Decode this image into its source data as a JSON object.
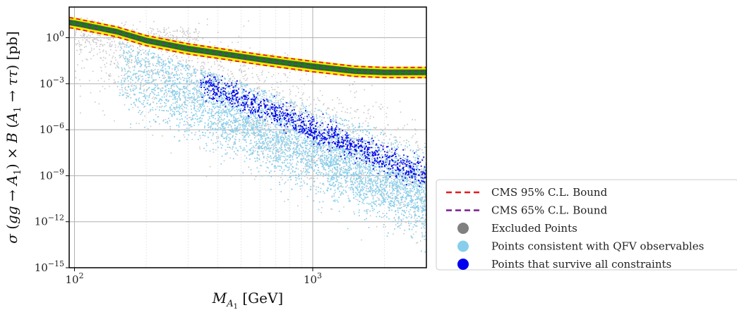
{
  "chart_data": {
    "type": "scatter",
    "title": "",
    "xlabel": "M_{A_1} [GeV]",
    "ylabel": "σ (gg → A_1) × B (A_1 → ττ)  [pb]",
    "xscale": "log",
    "yscale": "log",
    "xlim": [
      95,
      3000
    ],
    "ylim": [
      1e-15,
      100
    ],
    "grid": true,
    "x_ticks": [
      {
        "value": 100,
        "base": "10",
        "exp": "2"
      },
      {
        "value": 1000,
        "base": "10",
        "exp": "3"
      }
    ],
    "y_ticks": [
      {
        "value": 1,
        "base": "10",
        "exp": "0"
      },
      {
        "value": 0.001,
        "base": "10",
        "exp": "−3"
      },
      {
        "value": 1e-06,
        "base": "10",
        "exp": "−6"
      },
      {
        "value": 1e-09,
        "base": "10",
        "exp": "−9"
      },
      {
        "value": 1e-12,
        "base": "10",
        "exp": "−12"
      },
      {
        "value": 1e-15,
        "base": "10",
        "exp": "−15"
      }
    ],
    "legend_position": "outside-right",
    "series": [
      {
        "name": "CMS 95% C.L. Bound",
        "kind": "line",
        "color": "#e8191b",
        "dash": true,
        "x": [
          95,
          100,
          150,
          200,
          300,
          400,
          600,
          1000,
          1500,
          2000,
          3000
        ],
        "y": [
          18,
          16,
          4.5,
          1.2,
          0.35,
          0.18,
          0.07,
          0.025,
          0.012,
          0.01,
          0.01
        ]
      },
      {
        "name": "CMS 65% C.L. Bound",
        "kind": "line",
        "color": "#7b1c8e",
        "dash": true,
        "x": [
          95,
          100,
          150,
          200,
          300,
          400,
          600,
          1000,
          1500,
          2000,
          3000
        ],
        "y": [
          9,
          8,
          2.3,
          0.6,
          0.17,
          0.09,
          0.035,
          0.012,
          0.006,
          0.005,
          0.005
        ]
      },
      {
        "name": "Excluded Points",
        "kind": "scatter",
        "color": "#c8c8c8",
        "legend_color": "#808080"
      },
      {
        "name": "Points consistent with QFV observables",
        "kind": "scatter",
        "color": "#87ceeb"
      },
      {
        "name": "Points that survive all constraints",
        "kind": "scatter",
        "color": "#0000ee"
      }
    ],
    "band_colors": {
      "outer": "#f5e800",
      "inner": "#1f7a1f"
    }
  }
}
